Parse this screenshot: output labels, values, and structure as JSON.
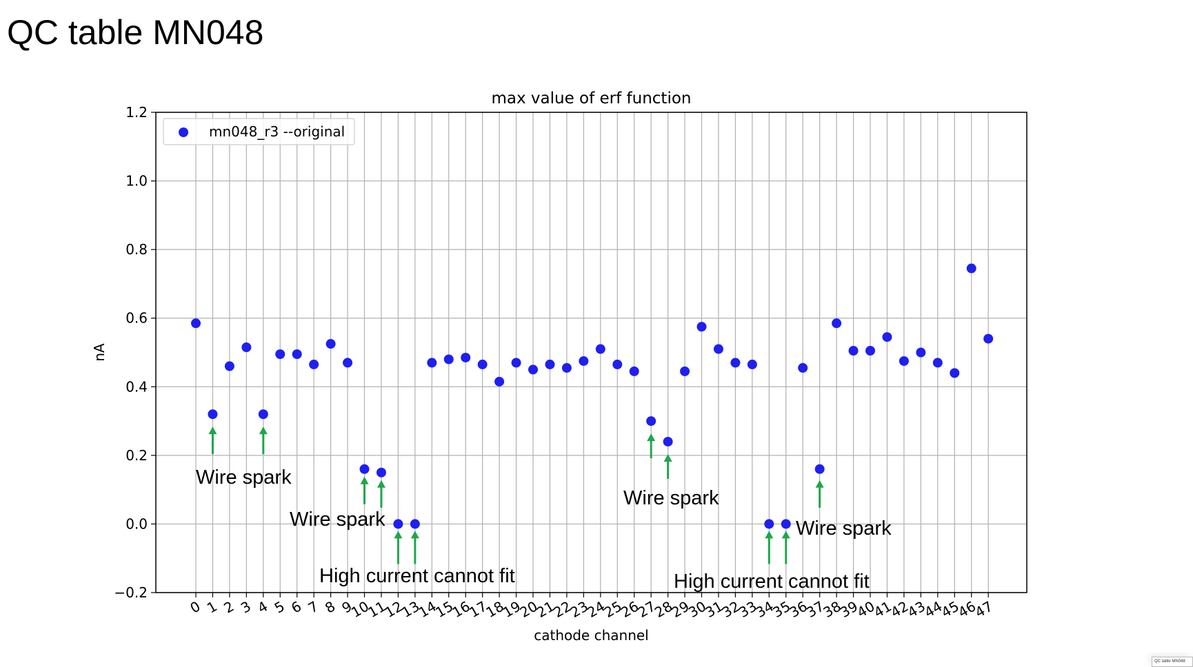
{
  "slide": {
    "title": "QC table MN048",
    "thumbnail_label": "QC table MN048"
  },
  "chart_data": {
    "type": "scatter",
    "title": "max value of erf function",
    "xlabel": "cathode channel",
    "ylabel": "nA",
    "ylim": [
      -0.2,
      1.2
    ],
    "yticks": [
      -0.2,
      0.0,
      0.2,
      0.4,
      0.6,
      0.8,
      1.0,
      1.2
    ],
    "ytick_labels": [
      "−0.2",
      "0.0",
      "0.2",
      "0.4",
      "0.6",
      "0.8",
      "1.0",
      "1.2"
    ],
    "x": [
      0,
      1,
      2,
      3,
      4,
      5,
      6,
      7,
      8,
      9,
      10,
      11,
      12,
      13,
      14,
      15,
      16,
      17,
      18,
      19,
      20,
      21,
      22,
      23,
      24,
      25,
      26,
      27,
      28,
      29,
      30,
      31,
      32,
      33,
      34,
      35,
      36,
      37,
      38,
      39,
      40,
      41,
      42,
      43,
      44,
      45,
      46,
      47
    ],
    "xtick_labels": [
      "0",
      "1",
      "2",
      "3",
      "4",
      "5",
      "6",
      "7",
      "8",
      "9",
      "10",
      "11",
      "12",
      "13",
      "14",
      "15",
      "16",
      "17",
      "18",
      "19",
      "20",
      "21",
      "22",
      "23",
      "24",
      "25",
      "26",
      "27",
      "28",
      "29",
      "30",
      "31",
      "32",
      "33",
      "34",
      "35",
      "36",
      "37",
      "38",
      "39",
      "40",
      "41",
      "42",
      "43",
      "44",
      "45",
      "46",
      "47"
    ],
    "grid": true,
    "legend_placement": "upper-left",
    "series": [
      {
        "name": "mn048_r3 --original",
        "color": "#1f1ff0",
        "values": [
          0.585,
          0.32,
          0.46,
          0.515,
          0.32,
          0.495,
          0.495,
          0.465,
          0.525,
          0.47,
          0.16,
          0.15,
          0.0,
          0.0,
          0.47,
          0.48,
          0.485,
          0.465,
          0.415,
          0.47,
          0.45,
          0.465,
          0.455,
          0.475,
          0.51,
          0.465,
          0.445,
          0.3,
          0.24,
          0.445,
          0.575,
          0.51,
          0.47,
          0.465,
          0.0,
          0.0,
          0.455,
          0.16,
          0.585,
          0.505,
          0.505,
          0.545,
          0.475,
          0.5,
          0.47,
          0.44,
          0.745,
          0.54
        ]
      }
    ],
    "annotations": [
      {
        "text": "Wire spark",
        "channels": [
          1,
          4
        ]
      },
      {
        "text": "Wire spark",
        "channels": [
          10,
          11
        ]
      },
      {
        "text": "High current cannot fit",
        "channels": [
          12,
          13
        ]
      },
      {
        "text": "Wire spark",
        "channels": [
          27,
          28
        ]
      },
      {
        "text": "High current cannot fit",
        "channels": [
          34,
          35
        ]
      },
      {
        "text": "Wire spark",
        "channels": [
          37
        ]
      }
    ],
    "arrow_color": "#1ea64a"
  }
}
